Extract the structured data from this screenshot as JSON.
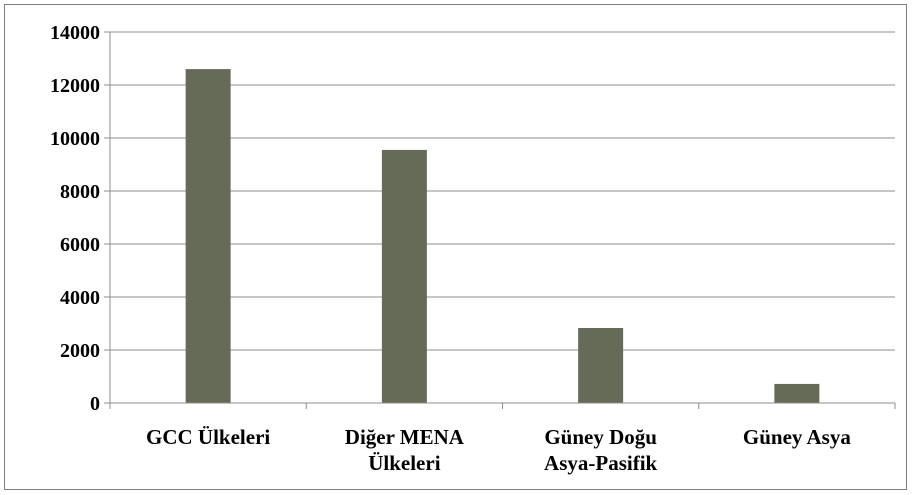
{
  "chart_data": {
    "type": "bar",
    "categories": [
      [
        "GCC Ülkeleri"
      ],
      [
        "Diğer MENA",
        "Ülkeleri"
      ],
      [
        "Güney Doğu",
        "Asya-Pasifik"
      ],
      [
        "Güney Asya"
      ]
    ],
    "values": [
      12600,
      9550,
      2830,
      720
    ],
    "ylim": [
      0,
      14000
    ],
    "ytick_step": 2000,
    "yticks": [
      "0",
      "2000",
      "4000",
      "6000",
      "8000",
      "10000",
      "12000",
      "14000"
    ],
    "grid": true,
    "legend": "none",
    "bar_color": "#666b57",
    "grid_color": "#8c8c8c"
  }
}
